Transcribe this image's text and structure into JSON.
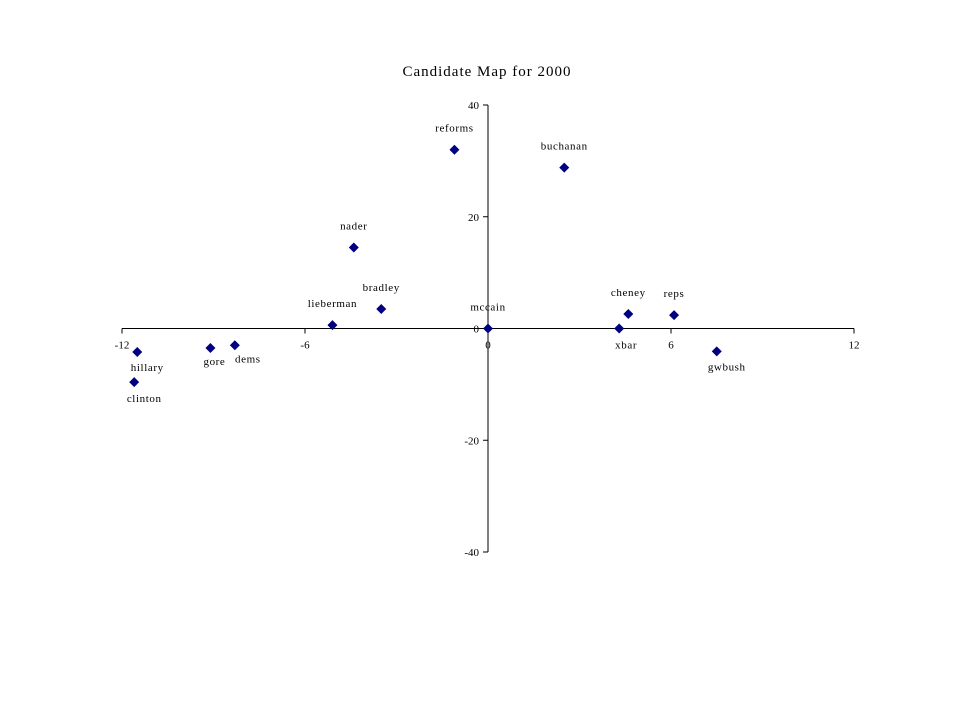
{
  "chart_data": {
    "type": "scatter",
    "title": "Candidate Map for 2000",
    "xlabel": "",
    "ylabel": "",
    "xlim": [
      -12,
      12
    ],
    "ylim": [
      -40,
      40
    ],
    "x_ticks": [
      -12,
      -6,
      0,
      6,
      12
    ],
    "y_ticks": [
      -40,
      -20,
      0,
      20,
      40
    ],
    "x_tick_labels": [
      "-12",
      "-6",
      "0",
      "6",
      "12"
    ],
    "y_tick_labels": [
      "-40",
      "-20",
      "0",
      "20",
      "40"
    ],
    "grid": false,
    "legend": "none",
    "marker": "diamond",
    "marker_color": "#000080",
    "points": [
      {
        "label": "reforms",
        "x": -1.1,
        "y": 32.0
      },
      {
        "label": "buchanan",
        "x": 2.5,
        "y": 28.8
      },
      {
        "label": "nader",
        "x": -4.4,
        "y": 14.5
      },
      {
        "label": "bradley",
        "x": -3.5,
        "y": 3.5
      },
      {
        "label": "lieberman",
        "x": -5.1,
        "y": 0.6
      },
      {
        "label": "mccain",
        "x": 0.0,
        "y": 0.0
      },
      {
        "label": "cheney",
        "x": 4.6,
        "y": 2.6
      },
      {
        "label": "reps",
        "x": 6.1,
        "y": 2.4
      },
      {
        "label": "xbar",
        "x": 4.3,
        "y": 0.0
      },
      {
        "label": "gwbush",
        "x": 7.5,
        "y": -4.1
      },
      {
        "label": "hillary",
        "x": -11.5,
        "y": -4.2
      },
      {
        "label": "clinton",
        "x": -11.6,
        "y": -9.6
      },
      {
        "label": "gore",
        "x": -9.1,
        "y": -3.5
      },
      {
        "label": "dems",
        "x": -8.3,
        "y": -3.0
      }
    ]
  }
}
